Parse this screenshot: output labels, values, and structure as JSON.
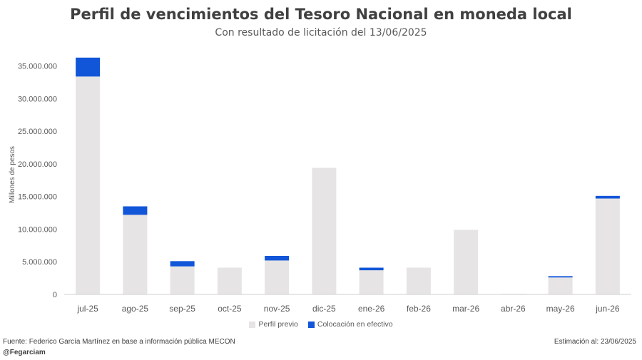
{
  "title": "Perfil de vencimientos del Tesoro Nacional en moneda local",
  "subtitle": "Con resultado de licitación del 13/06/2025",
  "footer": {
    "source": "Fuente: Federico García Martínez en base a información pública MECON",
    "handle": "@Fegarciam",
    "estimate": "Estimación al: 23/06/2025"
  },
  "colors": {
    "perfil_previo": "#e6e4e4",
    "colocacion": "#1155d8",
    "axis_text": "#595959",
    "axis_line": "#d0d0d0"
  },
  "chart_data": {
    "type": "bar",
    "stacked": true,
    "categories": [
      "jul-25",
      "ago-25",
      "sep-25",
      "oct-25",
      "nov-25",
      "dic-25",
      "ene-26",
      "feb-26",
      "mar-26",
      "abr-26",
      "may-26",
      "jun-26"
    ],
    "series": [
      {
        "name": "Perfil previo",
        "color": "#e6e4e4",
        "values": [
          33400000,
          12200000,
          4300000,
          4100000,
          5200000,
          19400000,
          3700000,
          4100000,
          9900000,
          100000,
          2600000,
          14700000
        ]
      },
      {
        "name": "Colocación en efectivo",
        "color": "#1155d8",
        "values": [
          2900000,
          1300000,
          800000,
          0,
          700000,
          0,
          400000,
          0,
          0,
          0,
          200000,
          400000
        ]
      }
    ],
    "ylabel": "Millones de pesos",
    "xlabel": "",
    "ylim": [
      0,
      36500000
    ],
    "yticks": [
      0,
      5000000,
      10000000,
      15000000,
      20000000,
      25000000,
      30000000,
      35000000
    ],
    "ytick_labels": [
      "0",
      "5.000.000",
      "10.000.000",
      "15.000.000",
      "20.000.000",
      "25.000.000",
      "30.000.000",
      "35.000.000"
    ],
    "grid": false,
    "legend_position": "bottom"
  }
}
